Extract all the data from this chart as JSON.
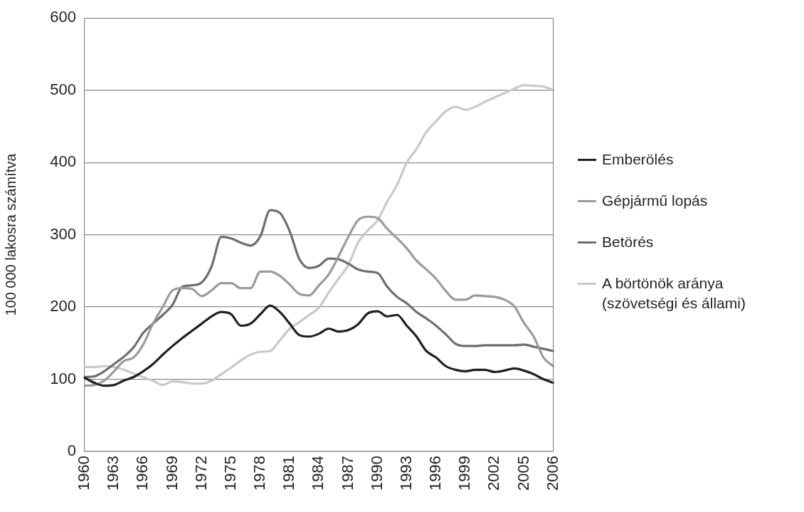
{
  "chart_data": {
    "type": "line",
    "ylabel": "100 000 lakosra számítva",
    "categories": [
      "1960",
      null,
      null,
      "1963",
      null,
      null,
      "1966",
      null,
      null,
      "1969",
      null,
      null,
      "1972",
      null,
      null,
      "1975",
      null,
      null,
      "1978",
      null,
      null,
      "1981",
      null,
      null,
      "1984",
      null,
      null,
      "1987",
      null,
      null,
      "1990",
      null,
      null,
      "1993",
      null,
      null,
      "1996",
      null,
      null,
      "1999",
      null,
      null,
      "2002",
      null,
      null,
      "2005",
      null,
      null,
      "2006"
    ],
    "series": [
      {
        "name": "Emberölés",
        "color": "#231f20",
        "values": [
          102,
          95,
          91,
          92,
          98,
          103,
          111,
          121,
          134,
          146,
          157,
          167,
          177,
          187,
          193,
          190,
          174,
          177,
          190,
          202,
          193,
          177,
          161,
          159,
          163,
          170,
          166,
          168,
          176,
          191,
          194,
          187,
          189,
          174,
          159,
          139,
          130,
          118,
          113,
          111,
          113,
          113,
          110,
          112,
          115,
          112,
          107,
          100,
          95
        ]
      },
      {
        "name": "Gépjármű lopás",
        "color": "#9a9b9f",
        "values": [
          91,
          92,
          98,
          111,
          125,
          130,
          148,
          177,
          200,
          223,
          226,
          225,
          215,
          223,
          233,
          233,
          226,
          226,
          249,
          249,
          243,
          231,
          218,
          216,
          230,
          245,
          270,
          297,
          320,
          325,
          323,
          308,
          295,
          281,
          264,
          252,
          239,
          222,
          210,
          210,
          216,
          215,
          214,
          210,
          201,
          178,
          159,
          130,
          118
        ]
      },
      {
        "name": "Betörés",
        "color": "#6d6e70",
        "values": [
          103,
          104,
          111,
          121,
          131,
          144,
          164,
          177,
          189,
          203,
          228,
          230,
          234,
          256,
          297,
          295,
          289,
          285,
          298,
          334,
          330,
          305,
          266,
          254,
          257,
          267,
          266,
          260,
          252,
          249,
          247,
          228,
          214,
          205,
          193,
          184,
          174,
          162,
          149,
          146,
          146,
          147,
          147,
          147,
          147,
          148,
          145,
          142,
          139
        ]
      },
      {
        "name": "A börtönök aránya (szövetségi és állami)",
        "color": "#c8c9cb",
        "values": [
          117,
          117,
          118,
          117,
          113,
          108,
          103,
          98,
          92,
          97,
          96,
          94,
          94,
          98,
          107,
          116,
          126,
          134,
          138,
          139,
          154,
          170,
          179,
          189,
          199,
          220,
          239,
          258,
          289,
          306,
          320,
          346,
          369,
          400,
          419,
          442,
          457,
          471,
          477,
          473,
          477,
          484,
          490,
          496,
          502,
          507,
          506,
          505,
          500
        ]
      }
    ],
    "ylim": [
      0,
      600
    ],
    "yticks": [
      0,
      100,
      200,
      300,
      400,
      500,
      600
    ],
    "grid": "y",
    "legend": "right",
    "marker": "none",
    "line_style": "solid"
  }
}
